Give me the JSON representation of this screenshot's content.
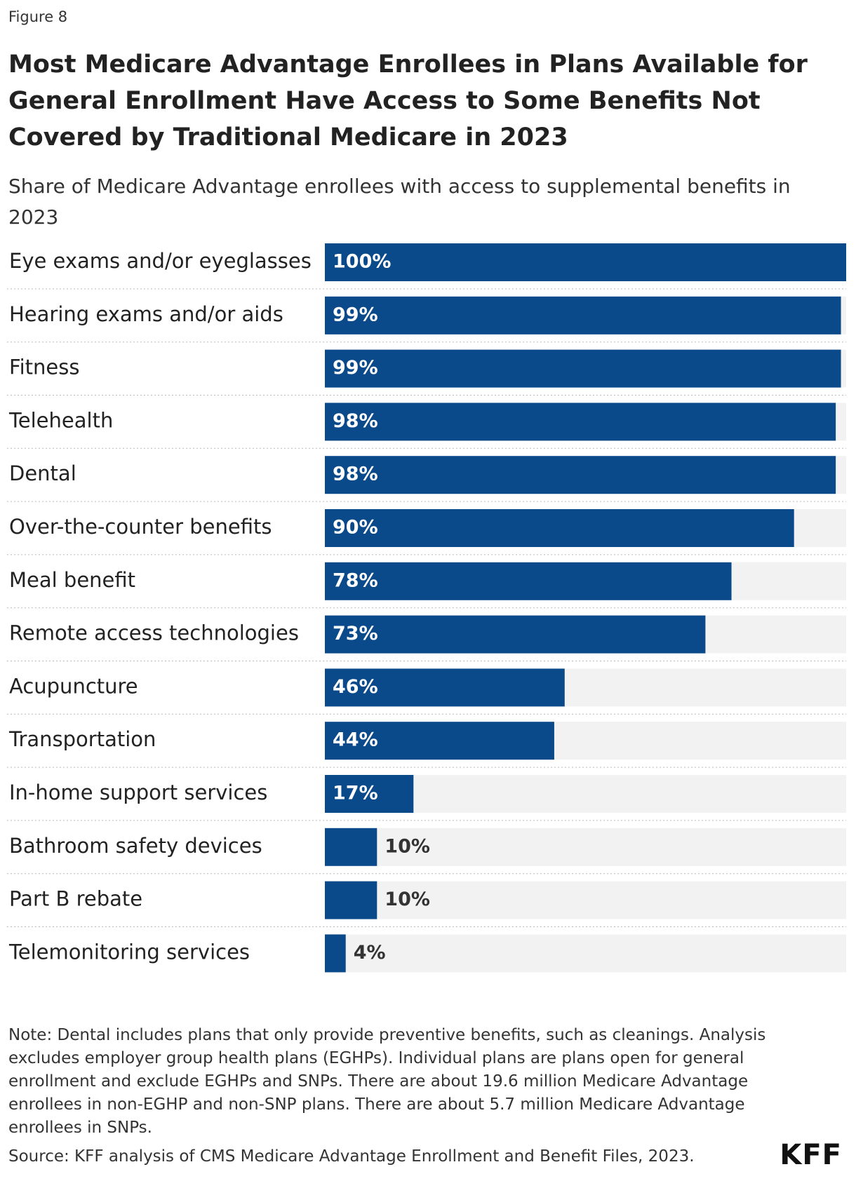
{
  "figure_label": "Figure 8",
  "chart_data": {
    "type": "bar",
    "orientation": "horizontal",
    "title": "Most Medicare Advantage Enrollees in Plans Available for General Enrollment Have Access to Some Benefits Not Covered by Traditional Medicare in 2023",
    "subtitle": "Share of Medicare Advantage enrollees with access to supplemental benefits in 2023",
    "categories": [
      "Eye exams and/or eyeglasses",
      "Hearing exams and/or aids",
      "Fitness",
      "Telehealth",
      "Dental",
      "Over-the-counter benefits",
      "Meal benefit",
      "Remote access technologies",
      "Acupuncture",
      "Transportation",
      "In-home support services",
      "Bathroom safety devices",
      "Part B rebate",
      "Telemonitoring services"
    ],
    "values": [
      100,
      99,
      99,
      98,
      98,
      90,
      78,
      73,
      46,
      44,
      17,
      10,
      10,
      4
    ],
    "value_labels": [
      "100%",
      "99%",
      "99%",
      "98%",
      "98%",
      "90%",
      "78%",
      "73%",
      "46%",
      "44%",
      "17%",
      "10%",
      "10%",
      "4%"
    ],
    "color": "#0a4a8a",
    "xlim": [
      0,
      100
    ]
  },
  "note": "Note: Dental includes plans that only provide preventive benefits, such as cleanings. Analysis excludes employer group health plans (EGHPs). Individual plans are plans open for general enrollment and exclude EGHPs and SNPs. There are about 19.6 million Medicare Advantage enrollees in non-EGHP and non-SNP plans. There are about 5.7 million Medicare Advantage enrollees in SNPs.",
  "source": "Source: KFF analysis of CMS Medicare Advantage Enrollment and Benefit Files, 2023.",
  "logo": "KFF"
}
